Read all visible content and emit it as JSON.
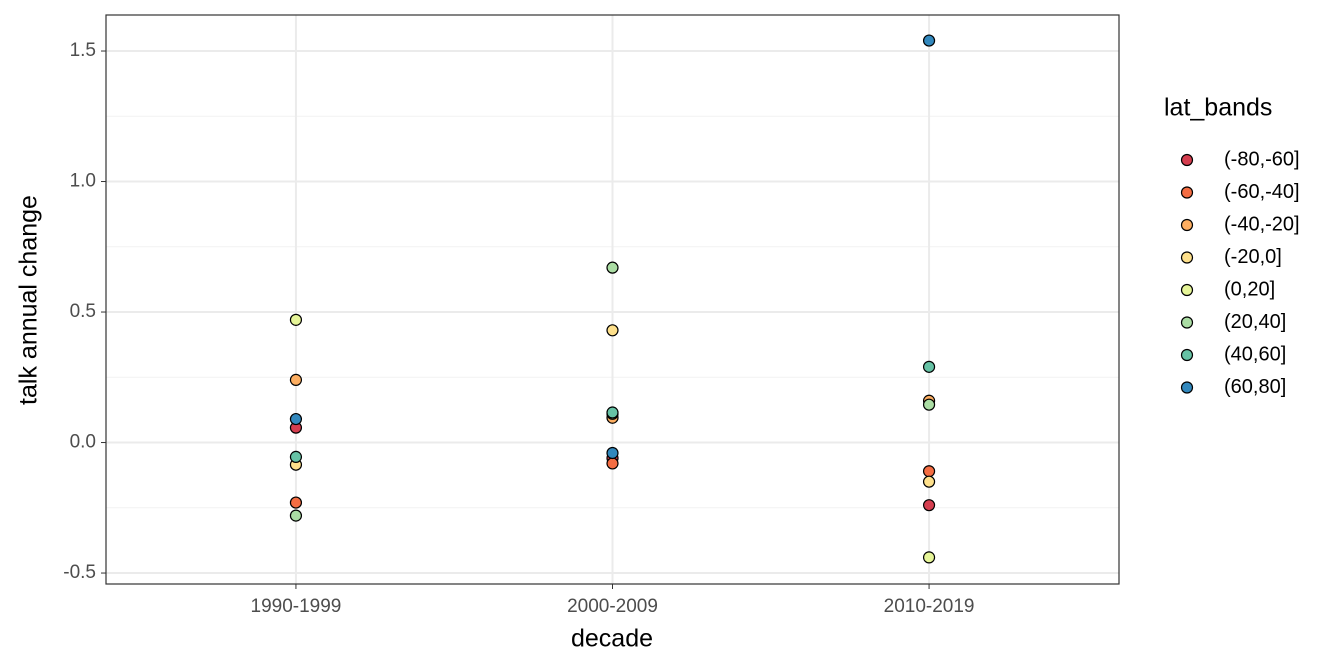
{
  "chart_data": {
    "type": "scatter",
    "x_label": "decade",
    "y_label": "talk annual change",
    "legend_title": "lat_bands",
    "categories": [
      "1990-1999",
      "2000-2009",
      "2010-2019"
    ],
    "ylim": [
      -0.542,
      1.638
    ],
    "yticks": [
      {
        "value": -0.5,
        "label": "-0.5"
      },
      {
        "value": 0,
        "label": "0.0"
      },
      0.5,
      {
        "value": 1,
        "label": "1.0"
      },
      1.5
    ],
    "grid": true,
    "legend_position": "right",
    "series": [
      {
        "name": "(-80,-60]",
        "color": "#D53E4F",
        "values": [
          0.057,
          -0.06,
          -0.24
        ]
      },
      {
        "name": "(-60,-40]",
        "color": "#F46D43",
        "values": [
          -0.23,
          -0.08,
          -0.11
        ]
      },
      {
        "name": "(-40,-20]",
        "color": "#FDAE61",
        "values": [
          0.24,
          0.095,
          0.16
        ]
      },
      {
        "name": "(-20,0]",
        "color": "#FEE08B",
        "values": [
          -0.085,
          0.43,
          -0.15
        ]
      },
      {
        "name": "(0,20]",
        "color": "#E6F598",
        "values": [
          0.47,
          0.11,
          -0.44
        ]
      },
      {
        "name": "(20,40]",
        "color": "#ABDDA4",
        "values": [
          -0.28,
          0.67,
          0.145
        ]
      },
      {
        "name": "(40,60]",
        "color": "#66C2A5",
        "values": [
          -0.055,
          0.115,
          0.29
        ]
      },
      {
        "name": "(60,80]",
        "color": "#3288BD",
        "values": [
          0.09,
          -0.04,
          1.54
        ]
      }
    ]
  }
}
